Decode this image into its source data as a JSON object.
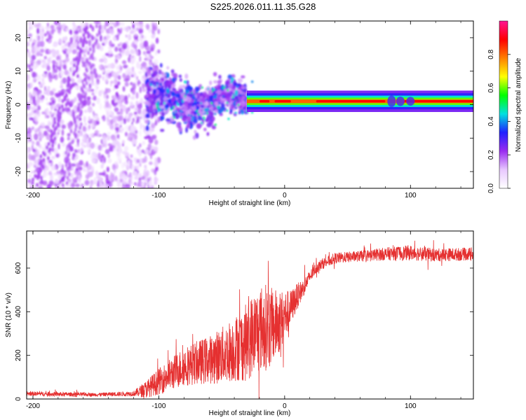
{
  "title": "S225.2026.011.11.35.G28",
  "chart_data": [
    {
      "type": "heatmap",
      "xlabel": "Height of straight line (km)",
      "ylabel": "Frequency (Hz)",
      "xlim": [
        -205,
        150
      ],
      "ylim": [
        -25,
        25
      ],
      "xticks": [
        -200,
        -100,
        0,
        100
      ],
      "yticks": [
        -20,
        -10,
        0,
        10,
        20
      ],
      "colorbar": {
        "label": "Normalized spectral amplitude",
        "range": [
          0.0,
          1.0
        ],
        "ticks": [
          0.0,
          0.2,
          0.4,
          0.6,
          0.8
        ],
        "tick_labels": [
          "0.0",
          "0.2",
          "0.4",
          "0.6",
          "0.8"
        ],
        "stops": [
          "#ffffff",
          "#e8c8ff",
          "#9a2cf0",
          "#2020ff",
          "#00e0e0",
          "#00ff00",
          "#ffff00",
          "#ff8000",
          "#ff0000",
          "#ff1493"
        ]
      },
      "regions": [
        {
          "x_range": [
            -205,
            -110
          ],
          "freq_spread": 25,
          "amplitude": 0.12,
          "description_kind": "scattered noise"
        },
        {
          "x_range": [
            -110,
            -30
          ],
          "freq_spread": 6,
          "amplitude": 0.25
        },
        {
          "x_range": [
            -30,
            150
          ],
          "freq_spread": 1.5,
          "amplitude": 0.9
        }
      ]
    },
    {
      "type": "line",
      "xlabel": "Height of straight line (km)",
      "ylabel": "SNR (10 * v/v)",
      "xlim": [
        -205,
        150
      ],
      "ylim": [
        0,
        770
      ],
      "xticks": [
        -200,
        -100,
        0,
        100
      ],
      "yticks": [
        0,
        200,
        400,
        600
      ],
      "series": [
        {
          "name": "SNR",
          "color": "#e53030",
          "x": [
            -205,
            -180,
            -150,
            -120,
            -110,
            -100,
            -80,
            -60,
            -50,
            -40,
            -30,
            -25,
            -20,
            -15,
            -10,
            -5,
            0,
            5,
            10,
            15,
            20,
            25,
            30,
            40,
            50,
            60,
            80,
            100,
            120,
            150
          ],
          "y": [
            25,
            22,
            20,
            25,
            45,
            80,
            150,
            180,
            200,
            230,
            260,
            300,
            320,
            330,
            330,
            350,
            380,
            420,
            470,
            510,
            560,
            600,
            620,
            645,
            650,
            655,
            665,
            670,
            660,
            665
          ],
          "noise": [
            10,
            10,
            8,
            12,
            40,
            60,
            90,
            110,
            130,
            150,
            180,
            190,
            200,
            200,
            180,
            150,
            120,
            80,
            60,
            40,
            30,
            25,
            25,
            25,
            25,
            25,
            30,
            35,
            30,
            30
          ]
        }
      ]
    }
  ]
}
